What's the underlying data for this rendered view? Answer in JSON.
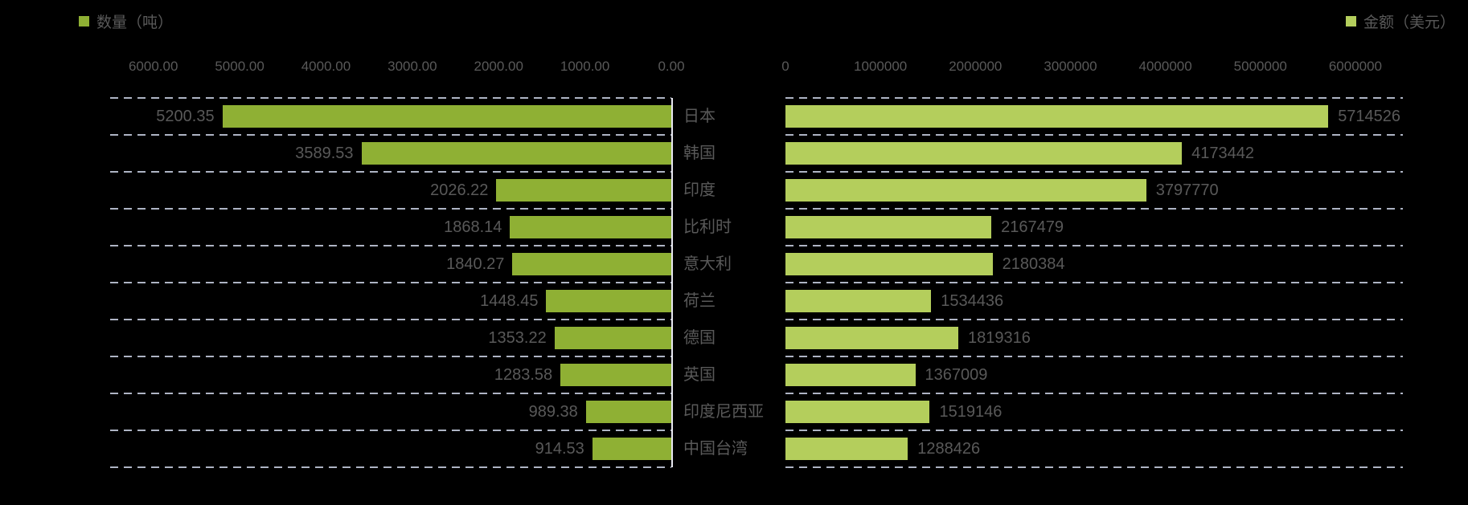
{
  "colors": {
    "background": "#000000",
    "left_bar": "#8FB034",
    "right_bar": "#B4CE5C",
    "text": "#595959",
    "gridline": "#AEB4C4",
    "axis_line": "#E8E8F0"
  },
  "chart_data": {
    "type": "bar",
    "variant": "tornado-bidirectional-horizontal",
    "grid": {
      "horizontal_lines": "dashed",
      "line_count": 11,
      "legend_position": "top-left / top-right"
    },
    "categories": [
      "日本",
      "韩国",
      "印度",
      "比利时",
      "意大利",
      "荷兰",
      "德国",
      "英国",
      "印度尼西亚",
      "中国台湾"
    ],
    "series": [
      {
        "name": "数量（吨）",
        "side": "left",
        "color": "#8FB034",
        "values": [
          5200.35,
          3589.53,
          2026.22,
          1868.14,
          1840.27,
          1448.45,
          1353.22,
          1283.58,
          989.38,
          914.53
        ],
        "labels": [
          "5200.35",
          "3589.53",
          "2026.22",
          "1868.14",
          "1840.27",
          "1448.45",
          "1353.22",
          "1283.58",
          "989.38",
          "914.53"
        ],
        "axis": {
          "direction": "right-to-left",
          "tick_labels": [
            "6000.00",
            "5000.00",
            "4000.00",
            "3000.00",
            "2000.00",
            "1000.00",
            "0.00"
          ],
          "tick_values": [
            6000,
            5000,
            4000,
            3000,
            2000,
            1000,
            0
          ],
          "scale_max": 6500
        }
      },
      {
        "name": "金额（美元）",
        "side": "right",
        "color": "#B4CE5C",
        "values": [
          5714526,
          4173442,
          3797770,
          2167479,
          2180384,
          1534436,
          1819316,
          1367009,
          1519146,
          1288426
        ],
        "labels": [
          "5714526",
          "4173442",
          "3797770",
          "2167479",
          "2180384",
          "1534436",
          "1819316",
          "1367009",
          "1519146",
          "1288426"
        ],
        "axis": {
          "direction": "left-to-right",
          "tick_labels": [
            "0",
            "1000000",
            "2000000",
            "3000000",
            "4000000",
            "5000000",
            "6000000"
          ],
          "tick_values": [
            0,
            1000000,
            2000000,
            3000000,
            4000000,
            5000000,
            6000000
          ],
          "scale_max": 6500000
        }
      }
    ]
  }
}
